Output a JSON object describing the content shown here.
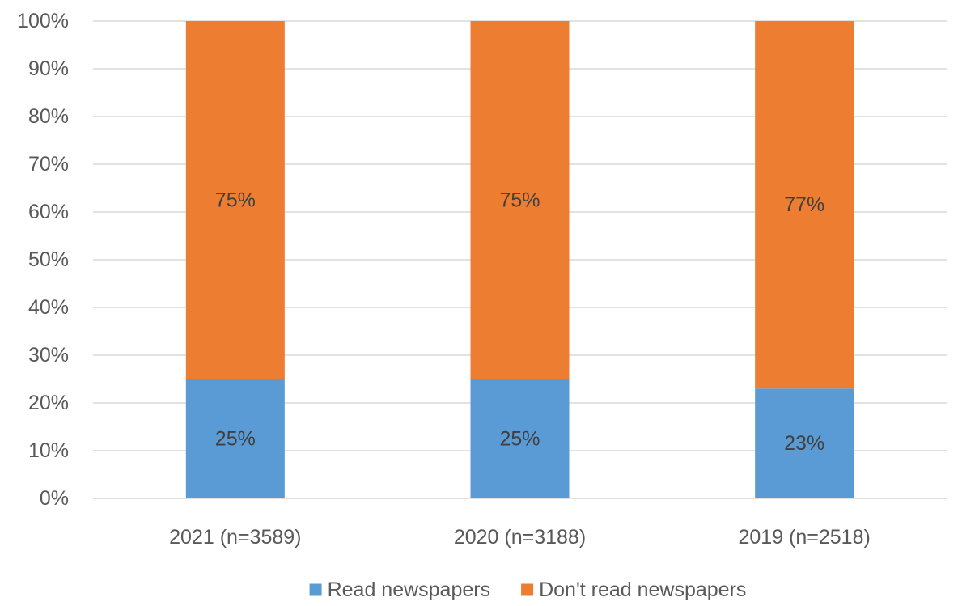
{
  "chart_data": {
    "type": "bar",
    "stacked": true,
    "categories": [
      "2021 (n=3589)",
      "2020 (n=3188)",
      "2019 (n=2518)"
    ],
    "series": [
      {
        "name": "Read newspapers",
        "values": [
          25,
          25,
          23
        ],
        "labels": [
          "25%",
          "25%",
          "23%"
        ],
        "color": "#5b9bd5"
      },
      {
        "name": "Don't read newspapers",
        "values": [
          75,
          75,
          77
        ],
        "labels": [
          "75%",
          "75%",
          "77%"
        ],
        "color": "#ed7d31"
      }
    ],
    "y_ticks": [
      "0%",
      "10%",
      "20%",
      "30%",
      "40%",
      "50%",
      "60%",
      "70%",
      "80%",
      "90%",
      "100%"
    ],
    "ylim": [
      0,
      100
    ],
    "title": "",
    "xlabel": "",
    "ylabel": "",
    "grid": true,
    "legend_position": "bottom-center"
  }
}
